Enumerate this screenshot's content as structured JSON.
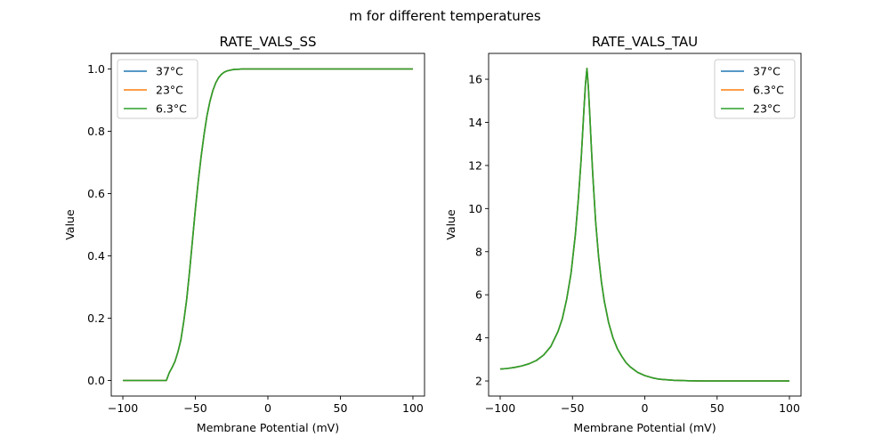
{
  "figure": {
    "suptitle": "m for different temperatures"
  },
  "chart_data": [
    {
      "type": "line",
      "title": "RATE_VALS_SS",
      "xlabel": "Membrane Potential (mV)",
      "ylabel": "Value",
      "xlim": [
        -108,
        108
      ],
      "ylim": [
        -0.05,
        1.05
      ],
      "xticks": [
        -100,
        -50,
        0,
        50,
        100
      ],
      "xtick_labels": [
        "−100",
        "−50",
        "0",
        "50",
        "100"
      ],
      "yticks": [
        0.0,
        0.2,
        0.4,
        0.6,
        0.8,
        1.0
      ],
      "ytick_labels": [
        "0.0",
        "0.2",
        "0.4",
        "0.6",
        "0.8",
        "1.0"
      ],
      "legend_position": "upper left",
      "grid": false,
      "x": [
        -100,
        -90,
        -80,
        -75,
        -70,
        -68,
        -66,
        -64,
        -62,
        -60,
        -58,
        -56,
        -54,
        -52,
        -50,
        -48,
        -46,
        -44,
        -42,
        -40,
        -38,
        -36,
        -34,
        -32,
        -30,
        -28,
        -26,
        -24,
        -22,
        -20,
        -18,
        -16,
        -14,
        -12,
        -10,
        0,
        20,
        40,
        60,
        80,
        100
      ],
      "series": [
        {
          "name": "37°C",
          "color": "#1f77b4",
          "values": [
            0.0,
            0.0,
            0.0,
            0.0,
            0.0,
            0.025,
            0.042,
            0.062,
            0.092,
            0.13,
            0.19,
            0.26,
            0.35,
            0.45,
            0.55,
            0.64,
            0.72,
            0.79,
            0.85,
            0.895,
            0.93,
            0.955,
            0.972,
            0.983,
            0.99,
            0.994,
            0.996,
            0.998,
            0.999,
            0.999,
            1.0,
            1.0,
            1.0,
            1.0,
            1.0,
            1.0,
            1.0,
            1.0,
            1.0,
            1.0,
            1.0
          ]
        },
        {
          "name": "23°C",
          "color": "#ff7f0e",
          "values": [
            0.0,
            0.0,
            0.0,
            0.0,
            0.0,
            0.025,
            0.042,
            0.062,
            0.092,
            0.13,
            0.19,
            0.26,
            0.35,
            0.45,
            0.55,
            0.64,
            0.72,
            0.79,
            0.85,
            0.895,
            0.93,
            0.955,
            0.972,
            0.983,
            0.99,
            0.994,
            0.996,
            0.998,
            0.999,
            0.999,
            1.0,
            1.0,
            1.0,
            1.0,
            1.0,
            1.0,
            1.0,
            1.0,
            1.0,
            1.0,
            1.0
          ]
        },
        {
          "name": "6.3°C",
          "color": "#2ca02c",
          "values": [
            0.0,
            0.0,
            0.0,
            0.0,
            0.0,
            0.025,
            0.042,
            0.062,
            0.092,
            0.13,
            0.19,
            0.26,
            0.35,
            0.45,
            0.55,
            0.64,
            0.72,
            0.79,
            0.85,
            0.895,
            0.93,
            0.955,
            0.972,
            0.983,
            0.99,
            0.994,
            0.996,
            0.998,
            0.999,
            0.999,
            1.0,
            1.0,
            1.0,
            1.0,
            1.0,
            1.0,
            1.0,
            1.0,
            1.0,
            1.0,
            1.0
          ]
        }
      ]
    },
    {
      "type": "line",
      "title": "RATE_VALS_TAU",
      "xlabel": "Membrane Potential (mV)",
      "ylabel": "Value",
      "xlim": [
        -108,
        108
      ],
      "ylim": [
        1.3,
        17.2
      ],
      "xticks": [
        -100,
        -50,
        0,
        50,
        100
      ],
      "xtick_labels": [
        "−100",
        "−50",
        "0",
        "50",
        "100"
      ],
      "yticks": [
        2,
        4,
        6,
        8,
        10,
        12,
        14,
        16
      ],
      "ytick_labels": [
        "2",
        "4",
        "6",
        "8",
        "10",
        "12",
        "14",
        "16"
      ],
      "legend_position": "upper right",
      "grid": false,
      "x": [
        -100,
        -95,
        -90,
        -85,
        -80,
        -75,
        -70,
        -65,
        -60,
        -57,
        -54,
        -51,
        -48,
        -46,
        -44,
        -43,
        -42,
        -41,
        -40,
        -39,
        -38,
        -37,
        -36,
        -34,
        -32,
        -30,
        -28,
        -25,
        -22,
        -19,
        -16,
        -13,
        -10,
        -5,
        0,
        5,
        10,
        20,
        30,
        40,
        50,
        60,
        70,
        80,
        100
      ],
      "series": [
        {
          "name": "37°C",
          "color": "#1f77b4",
          "values": [
            2.55,
            2.58,
            2.63,
            2.7,
            2.8,
            2.95,
            3.2,
            3.6,
            4.3,
            4.9,
            5.8,
            7.0,
            8.8,
            10.4,
            12.3,
            13.5,
            14.7,
            15.8,
            16.5,
            15.6,
            14.3,
            12.9,
            11.6,
            9.4,
            7.8,
            6.6,
            5.7,
            4.7,
            4.0,
            3.5,
            3.15,
            2.85,
            2.65,
            2.4,
            2.25,
            2.15,
            2.08,
            2.03,
            2.01,
            2.0,
            2.0,
            2.0,
            2.0,
            2.0,
            2.0
          ]
        },
        {
          "name": "6.3°C",
          "color": "#ff7f0e",
          "values": [
            2.55,
            2.58,
            2.63,
            2.7,
            2.8,
            2.95,
            3.2,
            3.6,
            4.3,
            4.9,
            5.8,
            7.0,
            8.8,
            10.4,
            12.3,
            13.5,
            14.7,
            15.8,
            16.5,
            15.6,
            14.3,
            12.9,
            11.6,
            9.4,
            7.8,
            6.6,
            5.7,
            4.7,
            4.0,
            3.5,
            3.15,
            2.85,
            2.65,
            2.4,
            2.25,
            2.15,
            2.08,
            2.03,
            2.01,
            2.0,
            2.0,
            2.0,
            2.0,
            2.0,
            2.0
          ]
        },
        {
          "name": "23°C",
          "color": "#2ca02c",
          "values": [
            2.55,
            2.58,
            2.63,
            2.7,
            2.8,
            2.95,
            3.2,
            3.6,
            4.3,
            4.9,
            5.8,
            7.0,
            8.8,
            10.4,
            12.3,
            13.5,
            14.7,
            15.8,
            16.5,
            15.6,
            14.3,
            12.9,
            11.6,
            9.4,
            7.8,
            6.6,
            5.7,
            4.7,
            4.0,
            3.5,
            3.15,
            2.85,
            2.65,
            2.4,
            2.25,
            2.15,
            2.08,
            2.03,
            2.01,
            2.0,
            2.0,
            2.0,
            2.0,
            2.0,
            2.0
          ]
        }
      ]
    }
  ]
}
